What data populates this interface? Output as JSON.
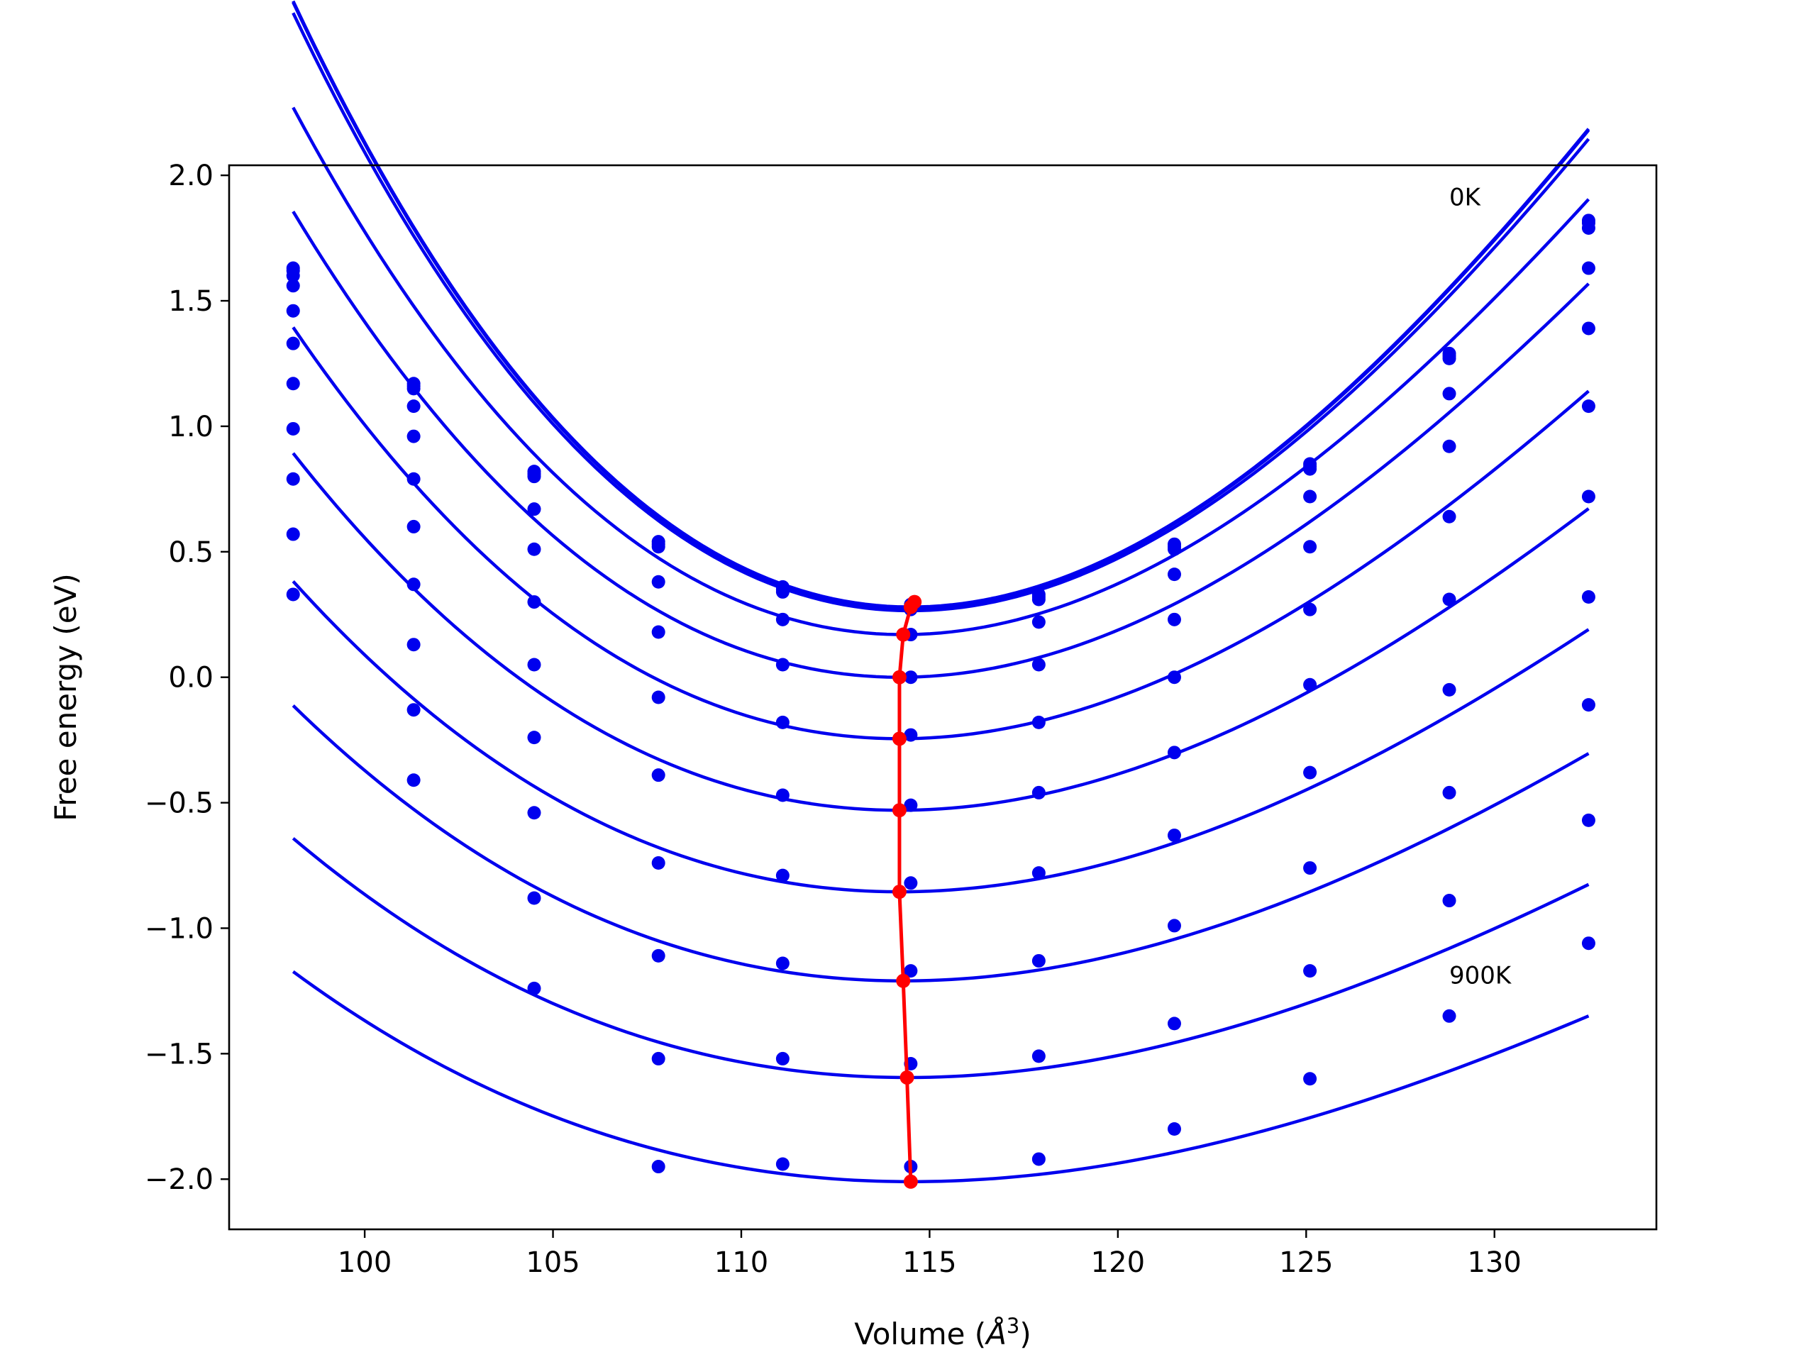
{
  "chart_data": {
    "type": "scatter",
    "xlabel": "Volume (",
    "xlabel_unit": "Å",
    "xlabel_sup": "3",
    "xlabel_close": ")",
    "ylabel": "Free energy (eV)",
    "xlim": [
      96.4,
      134.3
    ],
    "ylim": [
      -2.2,
      2.04
    ],
    "xticks": [
      100,
      105,
      110,
      115,
      120,
      125,
      130
    ],
    "xtick_labels": [
      "100",
      "105",
      "110",
      "115",
      "120",
      "125",
      "130"
    ],
    "yticks": [
      -2.0,
      -1.5,
      -1.0,
      -0.5,
      0.0,
      0.5,
      1.0,
      1.5,
      2.0
    ],
    "ytick_labels": [
      "−2.0",
      "−1.5",
      "−1.0",
      "−0.5",
      "0.0",
      "0.5",
      "1.0",
      "1.5",
      "2.0"
    ],
    "grid": false,
    "annotations": [
      {
        "text": "0K",
        "x": 128.8,
        "y": 1.88
      },
      {
        "text": "900K",
        "x": 128.8,
        "y": -1.22
      }
    ],
    "colors": {
      "curves": "#0000ee",
      "points": "#0000ee",
      "minimum_line": "#ff0000"
    },
    "x": [
      98.1,
      101.3,
      104.5,
      107.8,
      111.1,
      114.5,
      117.9,
      121.5,
      125.1,
      128.8,
      132.5
    ],
    "series": [
      {
        "y": [
          1.63,
          1.17,
          0.82,
          0.54,
          0.36,
          0.29,
          0.33,
          0.53,
          0.85,
          1.29,
          1.82
        ],
        "fit": {
          "a": 0.0075,
          "v0": 114.5,
          "e0": 0.28
        }
      },
      {
        "y": [
          1.62,
          1.16,
          0.81,
          0.53,
          0.35,
          0.28,
          0.32,
          0.52,
          0.84,
          1.28,
          1.81
        ],
        "fit": {
          "a": 0.0075,
          "v0": 114.5,
          "e0": 0.275
        }
      },
      {
        "y": [
          1.6,
          1.15,
          0.8,
          0.52,
          0.34,
          0.27,
          0.31,
          0.51,
          0.83,
          1.27,
          1.79
        ],
        "fit": {
          "a": 0.0074,
          "v0": 114.5,
          "e0": 0.265
        }
      },
      {
        "y": [
          1.56,
          1.08,
          0.67,
          0.38,
          0.23,
          0.17,
          0.22,
          0.41,
          0.72,
          1.13,
          1.63
        ],
        "fit": {
          "a": 0.0067,
          "v0": 114.3,
          "e0": 0.17
        }
      },
      {
        "y": [
          1.46,
          0.96,
          0.51,
          0.18,
          0.05,
          0.0,
          0.05,
          0.23,
          0.52,
          0.92,
          1.39
        ],
        "fit": {
          "a": 0.006,
          "v0": 114.2,
          "e0": 0.0
        }
      },
      {
        "y": [
          1.33,
          0.79,
          0.3,
          -0.08,
          -0.18,
          -0.23,
          -0.18,
          0.0,
          0.27,
          0.64,
          1.08
        ],
        "fit": {
          "a": 0.0053,
          "v0": 114.2,
          "e0": -0.245
        }
      },
      {
        "y": [
          1.17,
          0.6,
          0.05,
          -0.39,
          -0.47,
          -0.51,
          -0.46,
          -0.3,
          -0.03,
          0.31,
          0.72
        ],
        "fit": {
          "a": 0.0046,
          "v0": 114.2,
          "e0": -0.53
        }
      },
      {
        "y": [
          0.99,
          0.37,
          -0.24,
          -0.74,
          -0.79,
          -0.82,
          -0.78,
          -0.63,
          -0.38,
          -0.05,
          0.32
        ],
        "fit": {
          "a": 0.004,
          "v0": 114.2,
          "e0": -0.855
        }
      },
      {
        "y": [
          0.79,
          0.13,
          -0.54,
          -1.11,
          -1.14,
          -1.17,
          -1.13,
          -0.99,
          -0.76,
          -0.46,
          -0.11
        ],
        "fit": {
          "a": 0.0035,
          "v0": 114.3,
          "e0": -1.21
        }
      },
      {
        "y": [
          0.57,
          -0.13,
          -0.88,
          -1.52,
          -1.52,
          -1.54,
          -1.51,
          -1.38,
          -1.17,
          -0.89,
          -0.57
        ],
        "fit": {
          "a": 0.003,
          "v0": 114.4,
          "e0": -1.595
        }
      },
      {
        "y": [
          0.33,
          -0.41,
          -1.24,
          -1.95,
          -1.94,
          -1.95,
          -1.92,
          -1.8,
          -1.6,
          -1.35,
          -1.06
        ],
        "fit": {
          "a": 0.0026,
          "v0": 114.5,
          "e0": -2.01
        }
      }
    ],
    "minimum_line": {
      "x": [
        114.6,
        114.5,
        114.3,
        114.2,
        114.2,
        114.2,
        114.2,
        114.3,
        114.4,
        114.5
      ],
      "y": [
        0.3,
        0.28,
        0.17,
        0.0,
        -0.245,
        -0.53,
        -0.855,
        -1.21,
        -1.595,
        -2.01
      ]
    }
  }
}
